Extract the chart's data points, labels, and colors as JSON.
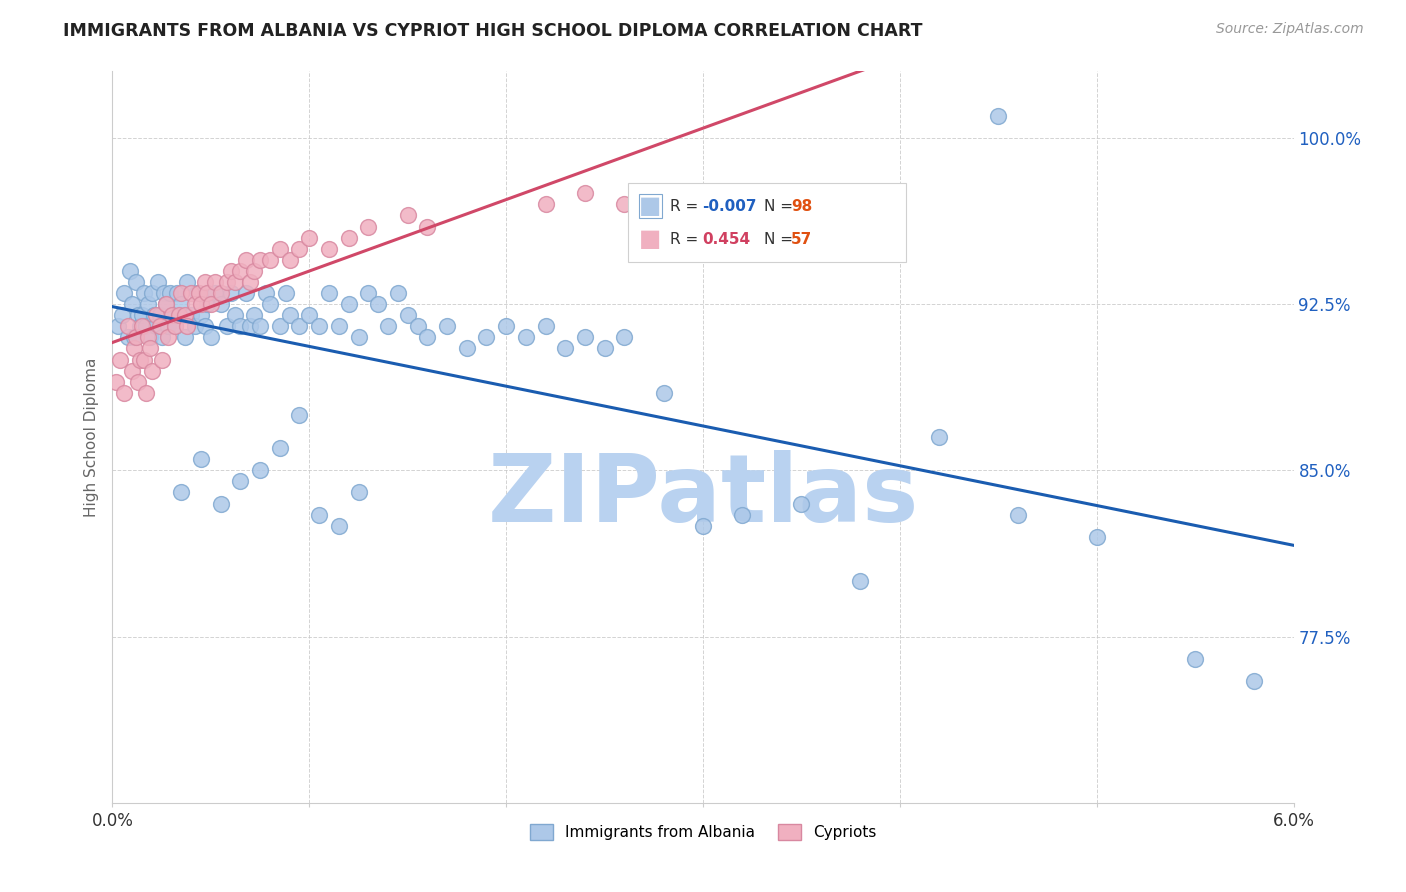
{
  "title": "IMMIGRANTS FROM ALBANIA VS CYPRIOT HIGH SCHOOL DIPLOMA CORRELATION CHART",
  "source_text": "Source: ZipAtlas.com",
  "ylabel": "High School Diploma",
  "xlim": [
    0.0,
    6.0
  ],
  "ylim": [
    70.0,
    103.0
  ],
  "yticks": [
    77.5,
    85.0,
    92.5,
    100.0
  ],
  "xticks": [
    0.0,
    1.0,
    2.0,
    3.0,
    4.0,
    5.0,
    6.0
  ],
  "xtick_labels_show": [
    "0.0%",
    "6.0%"
  ],
  "ytick_labels": [
    "77.5%",
    "85.0%",
    "92.5%",
    "100.0%"
  ],
  "r_color_albania": "#2060c0",
  "r_color_cypriots": "#d04060",
  "n_color": "#e05010",
  "watermark": "ZIPatlas",
  "watermark_color_r": 185,
  "watermark_color_g": 210,
  "watermark_color_b": 240,
  "background_color": "#ffffff",
  "grid_color": "#c8c8c8",
  "blue_scatter_color": "#adc8e8",
  "pink_scatter_color": "#f0b0c0",
  "blue_edge_color": "#80a8d0",
  "pink_edge_color": "#d888a0",
  "blue_line_color": "#1a5cb0",
  "pink_line_color": "#d04868",
  "scatter_size": 130,
  "albania_x": [
    0.03,
    0.05,
    0.06,
    0.08,
    0.09,
    0.1,
    0.11,
    0.12,
    0.13,
    0.14,
    0.15,
    0.16,
    0.17,
    0.18,
    0.19,
    0.2,
    0.21,
    0.22,
    0.23,
    0.24,
    0.25,
    0.26,
    0.27,
    0.28,
    0.29,
    0.3,
    0.32,
    0.33,
    0.35,
    0.37,
    0.38,
    0.4,
    0.42,
    0.43,
    0.45,
    0.47,
    0.48,
    0.5,
    0.52,
    0.55,
    0.58,
    0.6,
    0.62,
    0.65,
    0.68,
    0.7,
    0.72,
    0.75,
    0.78,
    0.8,
    0.85,
    0.88,
    0.9,
    0.95,
    1.0,
    1.05,
    1.1,
    1.15,
    1.2,
    1.25,
    1.3,
    1.35,
    1.4,
    1.45,
    1.5,
    1.55,
    1.6,
    1.7,
    1.8,
    1.9,
    2.0,
    2.1,
    2.2,
    2.3,
    2.4,
    2.5,
    2.6,
    2.8,
    3.0,
    3.2,
    3.5,
    3.8,
    4.2,
    4.6,
    5.0,
    5.5,
    5.8,
    0.35,
    0.45,
    0.55,
    0.65,
    0.75,
    0.85,
    0.95,
    1.05,
    1.15,
    1.25,
    4.5
  ],
  "albania_y": [
    91.5,
    92.0,
    93.0,
    91.0,
    94.0,
    92.5,
    91.0,
    93.5,
    92.0,
    91.5,
    92.0,
    93.0,
    91.5,
    92.5,
    91.0,
    93.0,
    92.0,
    91.5,
    93.5,
    92.0,
    91.0,
    93.0,
    92.5,
    91.5,
    93.0,
    92.0,
    91.5,
    93.0,
    92.5,
    91.0,
    93.5,
    92.0,
    91.5,
    93.0,
    92.0,
    91.5,
    92.5,
    91.0,
    93.0,
    92.5,
    91.5,
    93.0,
    92.0,
    91.5,
    93.0,
    91.5,
    92.0,
    91.5,
    93.0,
    92.5,
    91.5,
    93.0,
    92.0,
    91.5,
    92.0,
    91.5,
    93.0,
    91.5,
    92.5,
    91.0,
    93.0,
    92.5,
    91.5,
    93.0,
    92.0,
    91.5,
    91.0,
    91.5,
    90.5,
    91.0,
    91.5,
    91.0,
    91.5,
    90.5,
    91.0,
    90.5,
    91.0,
    88.5,
    82.5,
    83.0,
    83.5,
    80.0,
    86.5,
    83.0,
    82.0,
    76.5,
    75.5,
    84.0,
    85.5,
    83.5,
    84.5,
    85.0,
    86.0,
    87.5,
    83.0,
    82.5,
    84.0,
    101.0
  ],
  "cypriots_x": [
    0.02,
    0.04,
    0.06,
    0.08,
    0.1,
    0.11,
    0.12,
    0.13,
    0.14,
    0.15,
    0.16,
    0.17,
    0.18,
    0.19,
    0.2,
    0.22,
    0.24,
    0.25,
    0.27,
    0.28,
    0.3,
    0.32,
    0.34,
    0.35,
    0.37,
    0.38,
    0.4,
    0.42,
    0.44,
    0.45,
    0.47,
    0.48,
    0.5,
    0.52,
    0.55,
    0.58,
    0.6,
    0.62,
    0.65,
    0.68,
    0.7,
    0.72,
    0.75,
    0.8,
    0.85,
    0.9,
    0.95,
    1.0,
    1.1,
    1.2,
    1.3,
    1.5,
    1.6,
    2.2,
    2.4,
    2.6,
    2.8
  ],
  "cypriots_y": [
    89.0,
    90.0,
    88.5,
    91.5,
    89.5,
    90.5,
    91.0,
    89.0,
    90.0,
    91.5,
    90.0,
    88.5,
    91.0,
    90.5,
    89.5,
    92.0,
    91.5,
    90.0,
    92.5,
    91.0,
    92.0,
    91.5,
    92.0,
    93.0,
    92.0,
    91.5,
    93.0,
    92.5,
    93.0,
    92.5,
    93.5,
    93.0,
    92.5,
    93.5,
    93.0,
    93.5,
    94.0,
    93.5,
    94.0,
    94.5,
    93.5,
    94.0,
    94.5,
    94.5,
    95.0,
    94.5,
    95.0,
    95.5,
    95.0,
    95.5,
    96.0,
    96.5,
    96.0,
    97.0,
    97.5,
    97.0,
    97.5
  ]
}
